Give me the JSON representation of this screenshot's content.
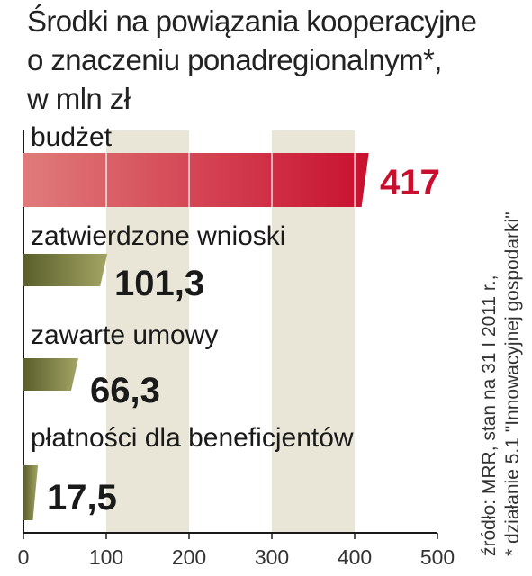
{
  "title_lines": [
    "Środki na powiązania kooperacyjne",
    "o znaczeniu ponadregionalnym*,",
    "w mln zł"
  ],
  "source_lines": [
    "źródło: MRR, stan na 31 I 2011 r.,",
    "* działanie 5.1 \"Innowacyjnej gospodarki\""
  ],
  "colors": {
    "highlight": "#c8102e",
    "highlight_light": "#e07b7b",
    "olive": "#5a5e2a",
    "olive_light": "#a3a565",
    "band": "#e9e6d8"
  },
  "chart_data": {
    "type": "bar",
    "orientation": "horizontal",
    "categories": [
      "budżet",
      "zatwierdzone wnioski",
      "zawarte umowy",
      "płatności dla beneficjentów"
    ],
    "values": [
      417,
      101.3,
      66.3,
      17.5
    ],
    "value_labels": [
      "417",
      "101,3",
      "66,3",
      "17,5"
    ],
    "highlighted": [
      true,
      false,
      false,
      false
    ],
    "xlim": [
      0,
      500
    ],
    "xticks": [
      "0",
      "100",
      "200",
      "300",
      "400",
      "500"
    ],
    "title": "Środki na powiązania kooperacyjne o znaczeniu ponadregionalnym*, w mln zł"
  }
}
